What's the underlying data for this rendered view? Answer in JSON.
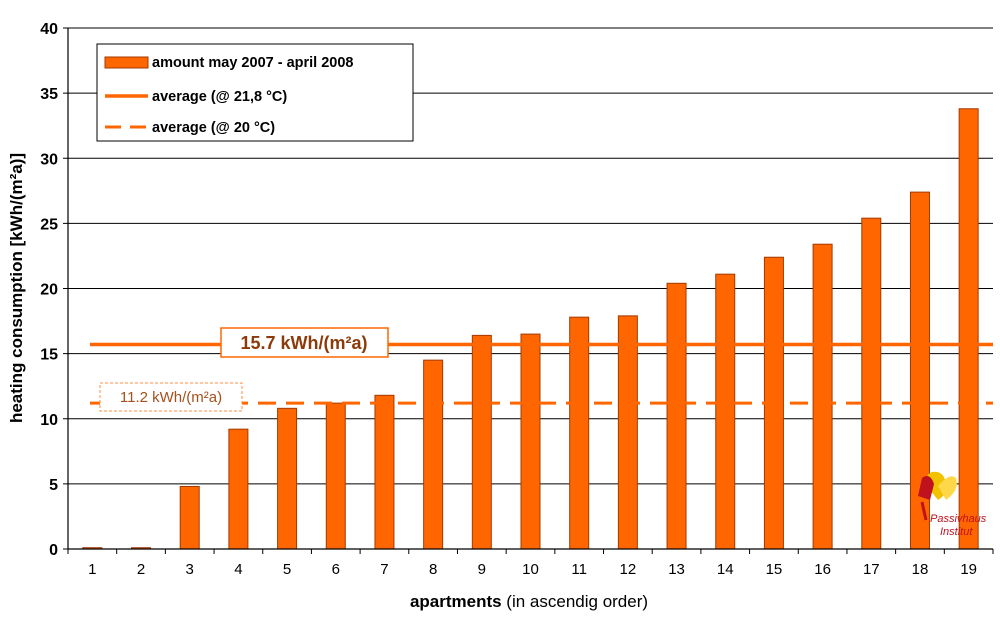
{
  "chart_data": {
    "type": "bar",
    "categories": [
      "1",
      "2",
      "3",
      "4",
      "5",
      "6",
      "7",
      "8",
      "9",
      "10",
      "11",
      "12",
      "13",
      "14",
      "15",
      "16",
      "17",
      "18",
      "19"
    ],
    "values": [
      0.1,
      0.1,
      4.8,
      9.2,
      10.8,
      11.2,
      11.8,
      14.5,
      16.4,
      16.5,
      17.8,
      17.9,
      20.4,
      21.1,
      22.4,
      23.4,
      25.4,
      27.4,
      33.8
    ],
    "ylim": [
      0,
      40
    ],
    "yticks": [
      0,
      5,
      10,
      15,
      20,
      25,
      30,
      35,
      40
    ],
    "ylabel": "heating consumption  [kWh/(m²a)]",
    "xlabel_bold": "apartments",
    "xlabel_rest": " (in ascendig order)",
    "grid": true,
    "bar_color": "#ff6600",
    "reference_lines": [
      {
        "name": "average (@ 21,8 °C)",
        "value": 15.7,
        "label": "15.7 kWh/(m²a)",
        "style": "solid"
      },
      {
        "name": "average (@ 20 °C)",
        "value": 11.2,
        "label": "11.2 kWh/(m²a)",
        "style": "dashed"
      }
    ],
    "legend": {
      "placement": "top-left",
      "entries": [
        "amount may 2007 - april 2008",
        "average (@ 21,8 °C)",
        "average (@ 20 °C)"
      ]
    }
  },
  "logo": {
    "line1": "Passivhaus",
    "line2": "Institut"
  },
  "colors": {
    "bar": "#ff6600",
    "bar_edge": "#a33a00",
    "line": "#ff6600",
    "label_dark": "#8b3b0a"
  }
}
